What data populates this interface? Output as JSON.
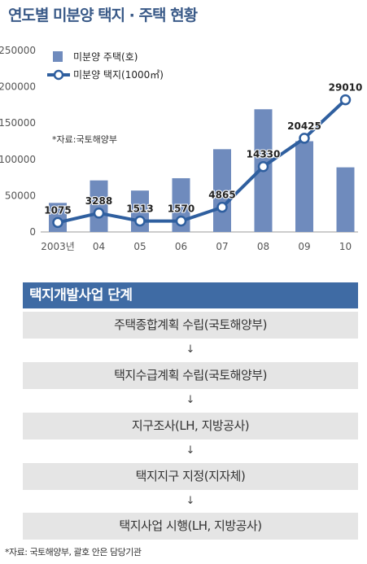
{
  "title": "연도별 미분양 택지 · 주택 현황",
  "chart_data": {
    "type": "bar+line",
    "categories": [
      "2003년",
      "04",
      "05",
      "06",
      "07",
      "08",
      "09",
      "10"
    ],
    "y_ticks": [
      "250000",
      "200000",
      "150000",
      "100000",
      "50000",
      "0"
    ],
    "ylim": [
      0,
      250000
    ],
    "note": "*자료:국토해양부",
    "legend_position": "top-left",
    "grid": false,
    "series": [
      {
        "name": "미분양 주택(호)",
        "type": "bar",
        "color": "#6f8bbd",
        "values": [
          40000,
          71000,
          57000,
          74000,
          114000,
          169000,
          125000,
          89000
        ]
      },
      {
        "name": "미분양 택지(1000㎡)",
        "type": "line",
        "color": "#2f5f9f",
        "values": [
          1075,
          3288,
          1513,
          1570,
          4865,
          14330,
          20425,
          29010
        ],
        "plot_values": [
          13000,
          26000,
          15000,
          15000,
          34000,
          90000,
          129000,
          182000
        ],
        "labels": [
          "1075",
          "3288",
          "1513",
          "1570",
          "4865",
          "14330",
          "20425",
          "29010"
        ]
      }
    ]
  },
  "steps": {
    "header": "택지개발사업 단계",
    "arrow": "↓",
    "items": [
      "주택종합계획 수립(국토해양부)",
      "택지수급계획 수립(국토해양부)",
      "지구조사(LH, 지방공사)",
      "택지지구 지정(지자체)",
      "택지사업 시행(LH, 지방공사)"
    ]
  },
  "footnote": "*자료: 국토해양부, 괄호 안은 담당기관"
}
